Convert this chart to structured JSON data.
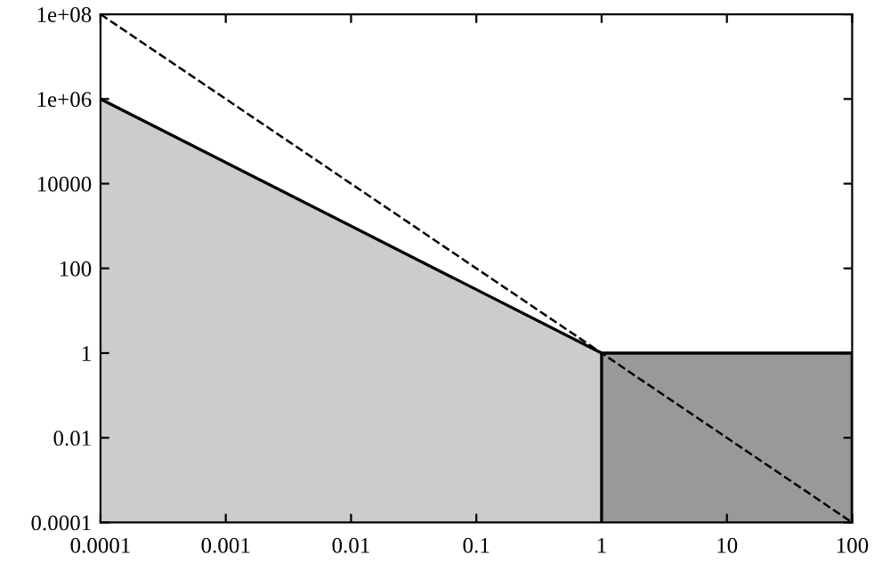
{
  "chart_data": {
    "type": "area",
    "log": "xy",
    "grid": false,
    "legend": false,
    "xlim": [
      0.0001,
      100
    ],
    "ylim": [
      0.0001,
      100000000
    ],
    "xticks": [
      {
        "value": 0.0001,
        "label": "0.0001"
      },
      {
        "value": 0.001,
        "label": "0.001"
      },
      {
        "value": 0.01,
        "label": "0.01"
      },
      0.1,
      1,
      10,
      100
    ],
    "yticks": [
      {
        "value": 0.0001,
        "label": "0.0001"
      },
      {
        "value": 0.01,
        "label": "0.01"
      },
      1,
      100,
      10000,
      {
        "value": 1000000,
        "label": "1e+06"
      },
      {
        "value": 100000000,
        "label": "1e+08"
      }
    ],
    "series": [
      {
        "color": "#cccccc",
        "x": [
          0.0001,
          1
        ],
        "values": [
          1000000,
          1
        ]
      },
      {
        "color": "#999999",
        "x": [
          1,
          100
        ],
        "values": [
          1,
          1
        ]
      },
      {
        "type": "line",
        "color": "#000000",
        "line_style": "dashed",
        "x": [
          0.0001,
          100
        ],
        "values": [
          100000000,
          0.0001
        ]
      }
    ]
  }
}
